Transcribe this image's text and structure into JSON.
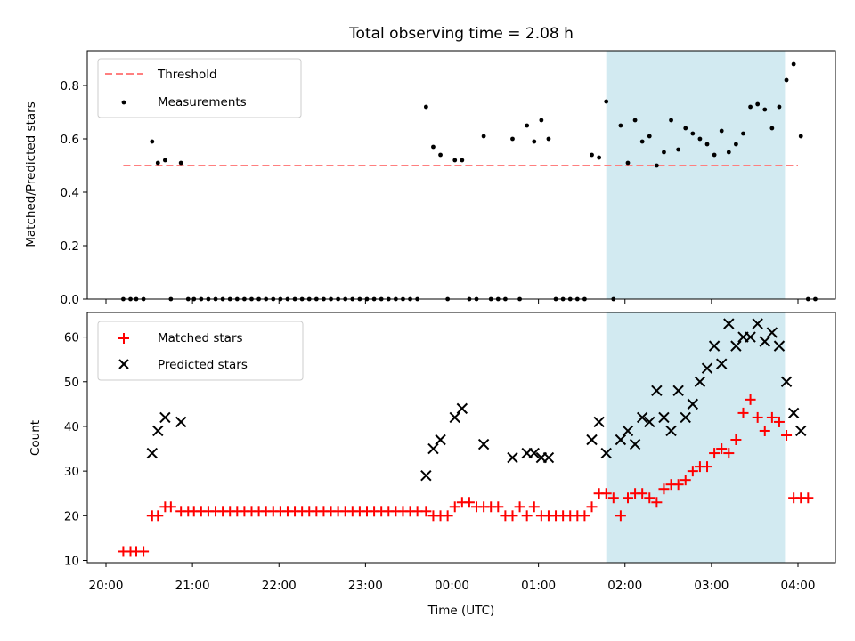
{
  "title": "Total observing time = 2.08 h",
  "shaded_interval": {
    "start": "01:47",
    "end": "03:51",
    "color": "#add8e6"
  },
  "chart_data": [
    {
      "type": "scatter",
      "ylabel": "Matched/Predicted stars",
      "ylim": [
        0,
        0.93
      ],
      "yticks": [
        "0.0",
        "0.2",
        "0.4",
        "0.6",
        "0.8"
      ],
      "legend": {
        "placement": "top-left",
        "entries": [
          "Threshold",
          "Measurements"
        ]
      },
      "threshold": {
        "name": "Threshold",
        "value": 0.5,
        "x_start": "20:12",
        "x_end": "04:00",
        "color": "#ff7f7f",
        "style": "dashed"
      },
      "series": [
        {
          "name": "Measurements",
          "color": "#000000",
          "marker": "dot",
          "points": [
            [
              "20:12",
              0
            ],
            [
              "20:17",
              0
            ],
            [
              "20:21",
              0
            ],
            [
              "20:26",
              0
            ],
            [
              "20:32",
              0.59
            ],
            [
              "20:36",
              0.51
            ],
            [
              "20:41",
              0.52
            ],
            [
              "20:45",
              0
            ],
            [
              "20:52",
              0.51
            ],
            [
              "20:57",
              0
            ],
            [
              "21:01",
              0
            ],
            [
              "21:06",
              0
            ],
            [
              "21:11",
              0
            ],
            [
              "21:16",
              0
            ],
            [
              "21:21",
              0
            ],
            [
              "21:26",
              0
            ],
            [
              "21:31",
              0
            ],
            [
              "21:36",
              0
            ],
            [
              "21:41",
              0
            ],
            [
              "21:46",
              0
            ],
            [
              "21:51",
              0
            ],
            [
              "21:56",
              0
            ],
            [
              "22:01",
              0
            ],
            [
              "22:06",
              0
            ],
            [
              "22:11",
              0
            ],
            [
              "22:16",
              0
            ],
            [
              "22:21",
              0
            ],
            [
              "22:26",
              0
            ],
            [
              "22:31",
              0
            ],
            [
              "22:36",
              0
            ],
            [
              "22:41",
              0
            ],
            [
              "22:46",
              0
            ],
            [
              "22:51",
              0
            ],
            [
              "22:56",
              0
            ],
            [
              "23:01",
              0
            ],
            [
              "23:06",
              0
            ],
            [
              "23:11",
              0
            ],
            [
              "23:16",
              0
            ],
            [
              "23:21",
              0
            ],
            [
              "23:26",
              0
            ],
            [
              "23:31",
              0
            ],
            [
              "23:36",
              0
            ],
            [
              "23:42",
              0.72
            ],
            [
              "23:47",
              0.57
            ],
            [
              "23:52",
              0.54
            ],
            [
              "23:57",
              0
            ],
            [
              "00:02",
              0.52
            ],
            [
              "00:07",
              0.52
            ],
            [
              "00:12",
              0
            ],
            [
              "00:17",
              0
            ],
            [
              "00:22",
              0.61
            ],
            [
              "00:27",
              0
            ],
            [
              "00:32",
              0
            ],
            [
              "00:37",
              0
            ],
            [
              "00:42",
              0.6
            ],
            [
              "00:47",
              0
            ],
            [
              "00:52",
              0.65
            ],
            [
              "00:57",
              0.59
            ],
            [
              "01:02",
              0.67
            ],
            [
              "01:07",
              0.6
            ],
            [
              "01:12",
              0
            ],
            [
              "01:17",
              0
            ],
            [
              "01:22",
              0
            ],
            [
              "01:27",
              0
            ],
            [
              "01:32",
              0
            ],
            [
              "01:37",
              0.54
            ],
            [
              "01:42",
              0.53
            ],
            [
              "01:47",
              0.74
            ],
            [
              "01:52",
              0
            ],
            [
              "01:57",
              0.65
            ],
            [
              "02:02",
              0.51
            ],
            [
              "02:07",
              0.67
            ],
            [
              "02:12",
              0.59
            ],
            [
              "02:17",
              0.61
            ],
            [
              "02:22",
              0.5
            ],
            [
              "02:27",
              0.55
            ],
            [
              "02:32",
              0.67
            ],
            [
              "02:37",
              0.56
            ],
            [
              "02:42",
              0.64
            ],
            [
              "02:47",
              0.62
            ],
            [
              "02:52",
              0.6
            ],
            [
              "02:57",
              0.58
            ],
            [
              "03:02",
              0.54
            ],
            [
              "03:07",
              0.63
            ],
            [
              "03:12",
              0.55
            ],
            [
              "03:17",
              0.58
            ],
            [
              "03:22",
              0.62
            ],
            [
              "03:27",
              0.72
            ],
            [
              "03:32",
              0.73
            ],
            [
              "03:37",
              0.71
            ],
            [
              "03:42",
              0.64
            ],
            [
              "03:47",
              0.72
            ],
            [
              "03:52",
              0.82
            ],
            [
              "03:57",
              0.88
            ],
            [
              "04:02",
              0.61
            ],
            [
              "04:07",
              0
            ],
            [
              "04:12",
              0
            ]
          ]
        }
      ]
    },
    {
      "type": "scatter",
      "xlabel": "Time (UTC)",
      "ylabel": "Count",
      "ylim": [
        9.5,
        65.5
      ],
      "yticks": [
        "10",
        "20",
        "30",
        "40",
        "50",
        "60"
      ],
      "xticks": [
        "20:00",
        "21:00",
        "22:00",
        "23:00",
        "00:00",
        "01:00",
        "02:00",
        "03:00",
        "04:00"
      ],
      "legend": {
        "placement": "top-left",
        "entries": [
          "Matched stars",
          "Predicted stars"
        ]
      },
      "series": [
        {
          "name": "Matched stars",
          "color": "#ff0000",
          "marker": "plus",
          "points": [
            [
              "20:12",
              12
            ],
            [
              "20:17",
              12
            ],
            [
              "20:21",
              12
            ],
            [
              "20:26",
              12
            ],
            [
              "20:32",
              20
            ],
            [
              "20:36",
              20
            ],
            [
              "20:41",
              22
            ],
            [
              "20:45",
              22
            ],
            [
              "20:52",
              21
            ],
            [
              "20:57",
              21
            ],
            [
              "21:01",
              21
            ],
            [
              "21:06",
              21
            ],
            [
              "21:11",
              21
            ],
            [
              "21:16",
              21
            ],
            [
              "21:21",
              21
            ],
            [
              "21:26",
              21
            ],
            [
              "21:31",
              21
            ],
            [
              "21:36",
              21
            ],
            [
              "21:41",
              21
            ],
            [
              "21:46",
              21
            ],
            [
              "21:51",
              21
            ],
            [
              "21:56",
              21
            ],
            [
              "22:01",
              21
            ],
            [
              "22:06",
              21
            ],
            [
              "22:11",
              21
            ],
            [
              "22:16",
              21
            ],
            [
              "22:21",
              21
            ],
            [
              "22:26",
              21
            ],
            [
              "22:31",
              21
            ],
            [
              "22:36",
              21
            ],
            [
              "22:41",
              21
            ],
            [
              "22:46",
              21
            ],
            [
              "22:51",
              21
            ],
            [
              "22:56",
              21
            ],
            [
              "23:01",
              21
            ],
            [
              "23:06",
              21
            ],
            [
              "23:11",
              21
            ],
            [
              "23:16",
              21
            ],
            [
              "23:21",
              21
            ],
            [
              "23:26",
              21
            ],
            [
              "23:31",
              21
            ],
            [
              "23:36",
              21
            ],
            [
              "23:42",
              21
            ],
            [
              "23:47",
              20
            ],
            [
              "23:52",
              20
            ],
            [
              "23:57",
              20
            ],
            [
              "00:02",
              22
            ],
            [
              "00:07",
              23
            ],
            [
              "00:12",
              23
            ],
            [
              "00:17",
              22
            ],
            [
              "00:22",
              22
            ],
            [
              "00:27",
              22
            ],
            [
              "00:32",
              22
            ],
            [
              "00:37",
              20
            ],
            [
              "00:42",
              20
            ],
            [
              "00:47",
              22
            ],
            [
              "00:52",
              20
            ],
            [
              "00:57",
              22
            ],
            [
              "01:02",
              20
            ],
            [
              "01:07",
              20
            ],
            [
              "01:12",
              20
            ],
            [
              "01:17",
              20
            ],
            [
              "01:22",
              20
            ],
            [
              "01:27",
              20
            ],
            [
              "01:32",
              20
            ],
            [
              "01:37",
              22
            ],
            [
              "01:42",
              25
            ],
            [
              "01:47",
              25
            ],
            [
              "01:52",
              24
            ],
            [
              "01:57",
              20
            ],
            [
              "02:02",
              24
            ],
            [
              "02:07",
              25
            ],
            [
              "02:12",
              25
            ],
            [
              "02:17",
              24
            ],
            [
              "02:22",
              23
            ],
            [
              "02:27",
              26
            ],
            [
              "02:32",
              27
            ],
            [
              "02:37",
              27
            ],
            [
              "02:42",
              28
            ],
            [
              "02:47",
              30
            ],
            [
              "02:52",
              31
            ],
            [
              "02:57",
              31
            ],
            [
              "03:02",
              34
            ],
            [
              "03:07",
              35
            ],
            [
              "03:12",
              34
            ],
            [
              "03:17",
              37
            ],
            [
              "03:22",
              43
            ],
            [
              "03:27",
              46
            ],
            [
              "03:32",
              42
            ],
            [
              "03:37",
              39
            ],
            [
              "03:42",
              42
            ],
            [
              "03:47",
              41
            ],
            [
              "03:52",
              38
            ],
            [
              "03:57",
              24
            ],
            [
              "04:02",
              24
            ],
            [
              "04:07",
              24
            ]
          ]
        },
        {
          "name": "Predicted stars",
          "color": "#000000",
          "marker": "x",
          "points": [
            [
              "20:32",
              34
            ],
            [
              "20:36",
              39
            ],
            [
              "20:41",
              42
            ],
            [
              "20:52",
              41
            ],
            [
              "23:42",
              29
            ],
            [
              "23:47",
              35
            ],
            [
              "23:52",
              37
            ],
            [
              "00:02",
              42
            ],
            [
              "00:07",
              44
            ],
            [
              "00:22",
              36
            ],
            [
              "00:42",
              33
            ],
            [
              "00:52",
              34
            ],
            [
              "00:57",
              34
            ],
            [
              "01:02",
              33
            ],
            [
              "01:07",
              33
            ],
            [
              "01:37",
              37
            ],
            [
              "01:42",
              41
            ],
            [
              "01:47",
              34
            ],
            [
              "01:57",
              37
            ],
            [
              "02:02",
              39
            ],
            [
              "02:07",
              36
            ],
            [
              "02:12",
              42
            ],
            [
              "02:17",
              41
            ],
            [
              "02:22",
              48
            ],
            [
              "02:27",
              42
            ],
            [
              "02:32",
              39
            ],
            [
              "02:37",
              48
            ],
            [
              "02:42",
              42
            ],
            [
              "02:47",
              45
            ],
            [
              "02:52",
              50
            ],
            [
              "02:57",
              53
            ],
            [
              "03:02",
              58
            ],
            [
              "03:07",
              54
            ],
            [
              "03:12",
              63
            ],
            [
              "03:17",
              58
            ],
            [
              "03:22",
              60
            ],
            [
              "03:27",
              60
            ],
            [
              "03:32",
              63
            ],
            [
              "03:37",
              59
            ],
            [
              "03:42",
              61
            ],
            [
              "03:47",
              58
            ],
            [
              "03:52",
              50
            ],
            [
              "03:57",
              43
            ],
            [
              "04:02",
              39
            ]
          ]
        }
      ]
    }
  ]
}
